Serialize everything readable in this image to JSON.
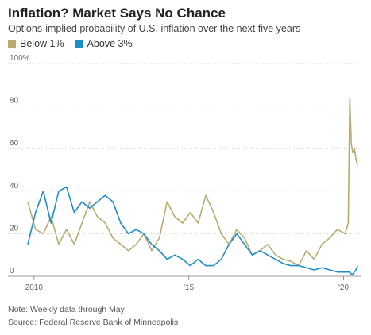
{
  "chart_data": {
    "type": "line",
    "title": "Inflation? Market Says No Chance",
    "subtitle": "Options-implied probability of U.S. inflation over the next five years",
    "note": "Note: Weekly data through May",
    "source": "Source: Federal Reserve Bank of Minneapolis",
    "x": [
      2009.8,
      2010.05,
      2010.3,
      2010.55,
      2010.8,
      2011.05,
      2011.3,
      2011.55,
      2011.8,
      2012.05,
      2012.3,
      2012.55,
      2012.8,
      2013.05,
      2013.3,
      2013.55,
      2013.8,
      2014.05,
      2014.3,
      2014.55,
      2014.8,
      2015.05,
      2015.3,
      2015.55,
      2015.8,
      2016.05,
      2016.3,
      2016.55,
      2016.8,
      2017.05,
      2017.3,
      2017.55,
      2017.8,
      2018.05,
      2018.3,
      2018.55,
      2018.8,
      2019.05,
      2019.3,
      2019.55,
      2019.8,
      2020.05,
      2020.15,
      2020.2,
      2020.25,
      2020.3,
      2020.35,
      2020.4,
      2020.45
    ],
    "series": [
      {
        "name": "Below 1%",
        "color": "#b8ab72",
        "values": [
          35,
          22,
          20,
          28,
          15,
          22,
          15,
          25,
          35,
          28,
          25,
          18,
          15,
          12,
          15,
          20,
          12,
          18,
          35,
          28,
          25,
          30,
          25,
          38,
          30,
          20,
          15,
          22,
          18,
          10,
          12,
          15,
          10,
          8,
          7,
          5,
          12,
          8,
          15,
          18,
          22,
          20,
          25,
          84,
          62,
          58,
          60,
          55,
          52
        ]
      },
      {
        "name": "Above 3%",
        "color": "#1d8ec6",
        "values": [
          15,
          30,
          40,
          25,
          40,
          42,
          30,
          35,
          32,
          35,
          38,
          35,
          25,
          20,
          22,
          20,
          15,
          12,
          8,
          10,
          8,
          5,
          8,
          5,
          5,
          8,
          15,
          20,
          15,
          10,
          12,
          10,
          8,
          6,
          5,
          5,
          4,
          3,
          4,
          3,
          2,
          2,
          2,
          2,
          1,
          1,
          2,
          3,
          5
        ]
      }
    ],
    "xlim": [
      2009.8,
      2020.5
    ],
    "xticks": [
      {
        "value": 2010,
        "label": "2010"
      },
      {
        "value": 2015,
        "label": "'15"
      },
      {
        "value": 2020,
        "label": "'20"
      }
    ],
    "ylim": [
      0,
      100
    ],
    "yticks": [
      0,
      20,
      40,
      60,
      80,
      {
        "value": 100,
        "label": "100%"
      }
    ],
    "grid": true
  }
}
